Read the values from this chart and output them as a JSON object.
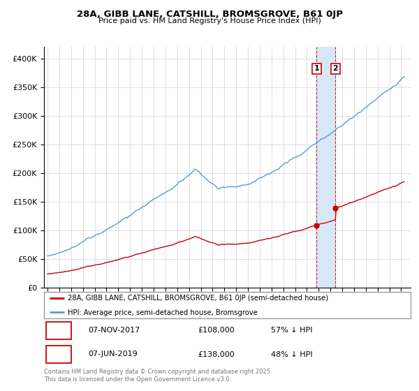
{
  "title1": "28A, GIBB LANE, CATSHILL, BROMSGROVE, B61 0JP",
  "title2": "Price paid vs. HM Land Registry's House Price Index (HPI)",
  "hpi_color": "#5b9bd5",
  "price_color": "#cc0000",
  "ylim": [
    0,
    420000
  ],
  "yticks": [
    0,
    50000,
    100000,
    150000,
    200000,
    250000,
    300000,
    350000,
    400000
  ],
  "transaction1": {
    "date": "07-NOV-2017",
    "price": 108000,
    "pct": "57%",
    "label": "1",
    "year": 2017.83
  },
  "transaction2": {
    "date": "07-JUN-2019",
    "price": 138000,
    "pct": "48%",
    "label": "2",
    "year": 2019.42
  },
  "legend_line1": "28A, GIBB LANE, CATSHILL, BROMSGROVE, B61 0JP (semi-detached house)",
  "legend_line2": "HPI: Average price, semi-detached house, Bromsgrove",
  "footer": "Contains HM Land Registry data © Crown copyright and database right 2025.\nThis data is licensed under the Open Government Licence v3.0.",
  "background_color": "#ffffff",
  "grid_color": "#d0d0d0",
  "shade_color": "#d6e8f7"
}
